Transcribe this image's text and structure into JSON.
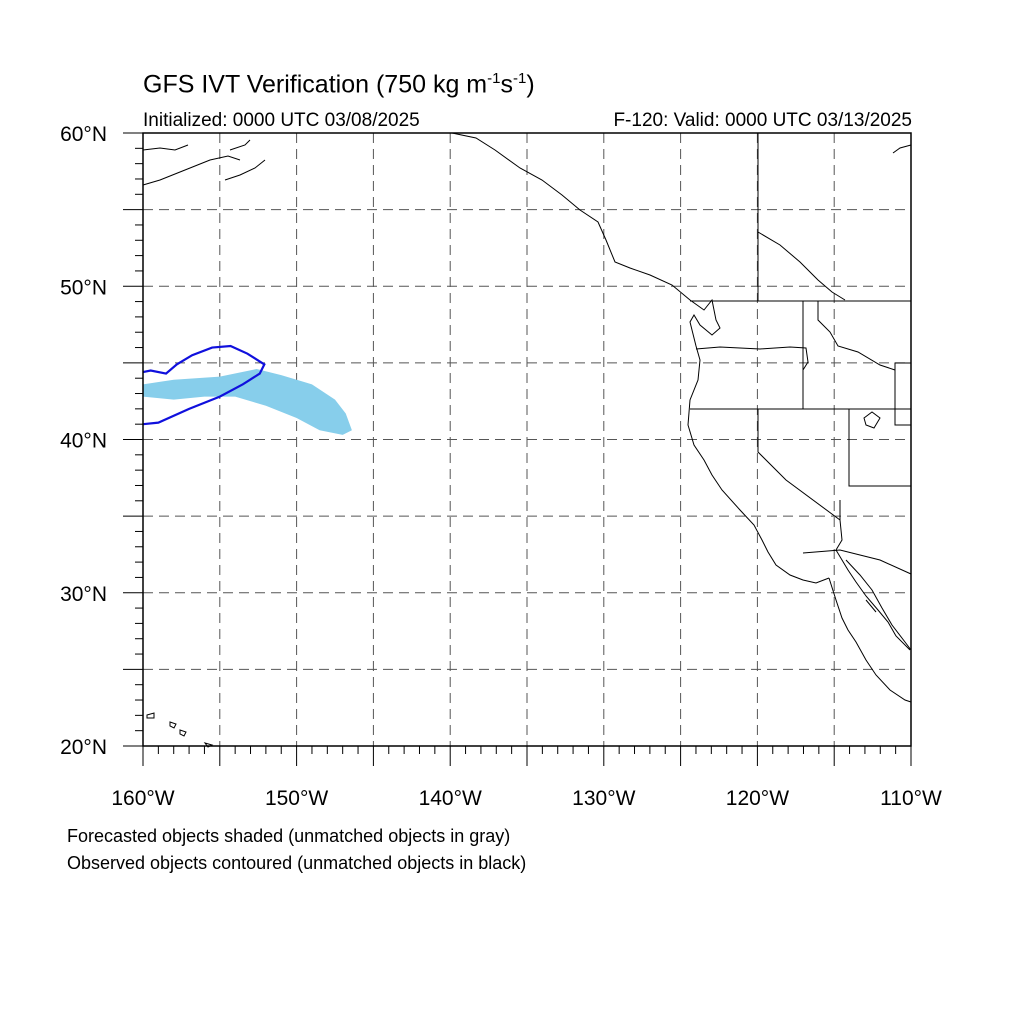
{
  "title": {
    "main": "GFS IVT Verification (750 kg m",
    "exp1": "-1",
    "mid": "s",
    "exp2": "-1",
    "close": ")"
  },
  "init_label": "Initialized: 0000 UTC 03/08/2025",
  "valid_label": "F-120: Valid: 0000 UTC 03/13/2025",
  "footer": {
    "line1": "Forecasted objects shaded (unmatched objects in gray)",
    "line2": "Observed objects contoured (unmatched objects in black)"
  },
  "map": {
    "lon_range": [
      -160,
      -110
    ],
    "lat_range": [
      20,
      60
    ],
    "lat_labels": [
      {
        "value": 60,
        "text": "60°N"
      },
      {
        "value": 50,
        "text": "50°N"
      },
      {
        "value": 40,
        "text": "40°N"
      },
      {
        "value": 30,
        "text": "30°N"
      },
      {
        "value": 20,
        "text": "20°N"
      }
    ],
    "lon_labels": [
      {
        "value": -160,
        "text": "160°W"
      },
      {
        "value": -150,
        "text": "150°W"
      },
      {
        "value": -140,
        "text": "140°W"
      },
      {
        "value": -130,
        "text": "130°W"
      },
      {
        "value": -120,
        "text": "120°W"
      },
      {
        "value": -110,
        "text": "110°W"
      }
    ],
    "forecast_object": {
      "color": "#87ceeb",
      "polygon": [
        [
          -160,
          43.6
        ],
        [
          -158,
          43.9
        ],
        [
          -155,
          44.1
        ],
        [
          -152.6,
          44.6
        ],
        [
          -151,
          44.2
        ],
        [
          -149,
          43.6
        ],
        [
          -147.5,
          42.6
        ],
        [
          -146.8,
          41.7
        ],
        [
          -146.4,
          40.6
        ],
        [
          -147,
          40.3
        ],
        [
          -148.5,
          40.6
        ],
        [
          -150,
          41.4
        ],
        [
          -152,
          42.2
        ],
        [
          -154,
          42.8
        ],
        [
          -156,
          42.8
        ],
        [
          -158,
          42.6
        ],
        [
          -160,
          42.8
        ]
      ]
    },
    "observed_object": {
      "color": "#1010dd",
      "polyline": [
        [
          -160,
          41.0
        ],
        [
          -159,
          41.1
        ],
        [
          -157,
          42.0
        ],
        [
          -155,
          42.8
        ],
        [
          -153.5,
          43.6
        ],
        [
          -152.4,
          44.3
        ],
        [
          -152.1,
          44.9
        ],
        [
          -153.2,
          45.6
        ],
        [
          -154.3,
          46.1
        ],
        [
          -155.5,
          46.0
        ],
        [
          -156.8,
          45.5
        ],
        [
          -157.8,
          44.9
        ],
        [
          -158.5,
          44.3
        ],
        [
          -159.5,
          44.5
        ],
        [
          -160,
          44.4
        ]
      ]
    }
  }
}
